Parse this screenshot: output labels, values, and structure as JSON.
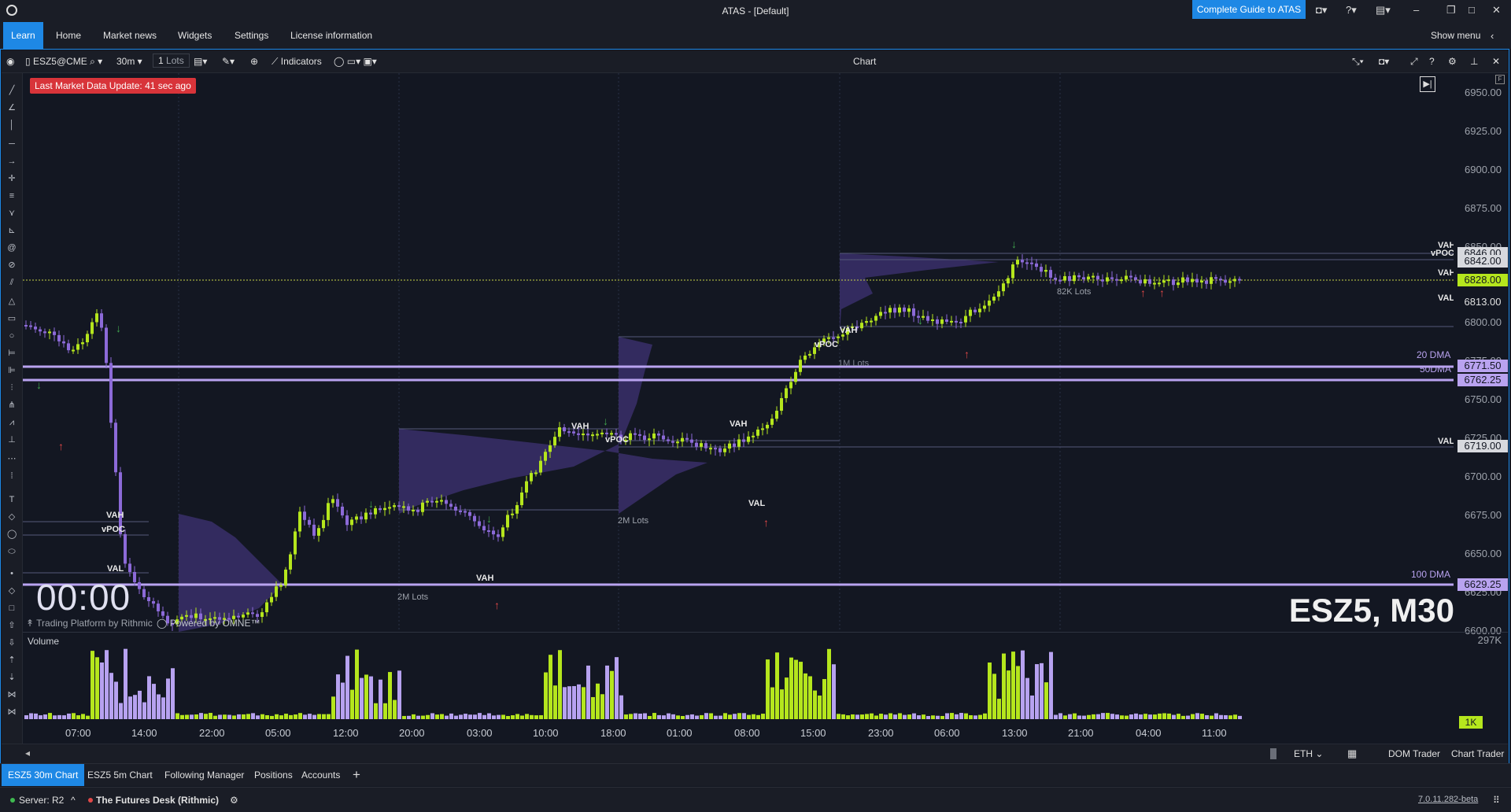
{
  "window": {
    "title": "ATAS - [Default]",
    "guide_button": "Complete Guide to ATAS"
  },
  "menu": {
    "items": [
      "Learn",
      "Home",
      "Market news",
      "Widgets",
      "Settings",
      "License information"
    ],
    "active": "Learn",
    "show_menu": "Show menu"
  },
  "chart_toolbar": {
    "instrument": "ESZ5@CME",
    "timeframe": "30m",
    "lots": "1",
    "lots_unit": "Lots",
    "indicators": "Indicators",
    "title": "Chart"
  },
  "alert": "Last Market Data Update: 41 sec ago",
  "price_axis": {
    "labels": [
      "6950.00",
      "6925.00",
      "6900.00",
      "6875.00",
      "6850.00",
      "6800.00",
      "6775.00",
      "6750.00",
      "6725.00",
      "6700.00",
      "6675.00",
      "6650.00",
      "6625.00",
      "6600.00"
    ],
    "volume_max": "297K"
  },
  "price_boxes": {
    "b6846": "6846.00",
    "b6842": "6842.00",
    "b6828": "6828.00",
    "b6813": "6813.00",
    "b6771": "6771.50",
    "b6762": "6762.25",
    "b6719": "6719.00",
    "b6629": "6629.25"
  },
  "annotations": {
    "vah": "VAH",
    "vpoc": "vPOC",
    "val": "VAL",
    "lots_82k": "82K Lots",
    "lots_1m": "1M Lots",
    "lots_2m_a": "2M Lots",
    "lots_2m_b": "2M Lots",
    "dma20": "20 DMA",
    "dma50": "50DMA",
    "dma100": "100 DMA"
  },
  "clock": "00:00",
  "symbol_label": "ESZ5, M30",
  "watermark": {
    "rithmic": "Trading Platform by Rithmic",
    "omne": "Powered by OMNE™"
  },
  "volume_label": "Volume",
  "volume_badge": "1K",
  "x_axis": [
    "07:00",
    "14:00",
    "22:00",
    "05:00",
    "12:00",
    "20:00",
    "03:00",
    "10:00",
    "18:00",
    "01:00",
    "08:00",
    "15:00",
    "23:00",
    "06:00",
    "13:00",
    "21:00",
    "04:00",
    "11:00"
  ],
  "bottom_toolbar": {
    "session": "ETH",
    "dom_trader": "DOM Trader",
    "chart_trader": "Chart Trader"
  },
  "tabs": {
    "items": [
      "ESZ5 30m Chart",
      "ESZ5 5m Chart",
      "Following Manager",
      "Positions",
      "Accounts"
    ],
    "active": "ESZ5 30m Chart"
  },
  "status": {
    "server": "Server: R2",
    "account": "The Futures Desk (Rithmic)",
    "version": "7.0.11.282-beta"
  },
  "colors": {
    "accent": "#1e88e5",
    "bull": "#b5e61d",
    "bear": "#8c6ad8",
    "dma": "#b9a3f0",
    "alert": "#d8343a",
    "background": "#131722"
  }
}
